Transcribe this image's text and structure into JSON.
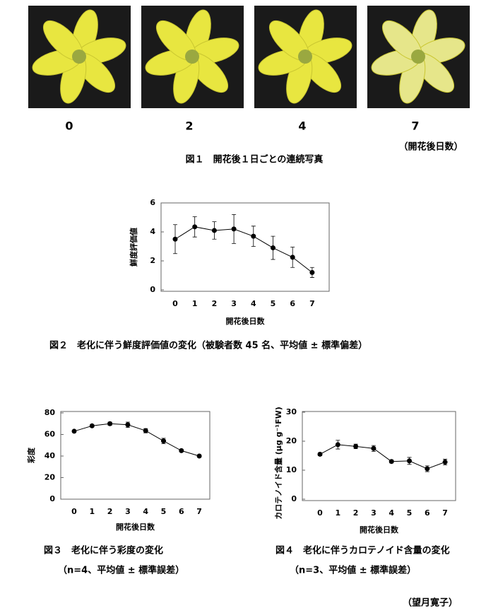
{
  "figure1": {
    "labels": [
      0,
      2,
      4,
      7
    ],
    "unit": "（開花後日数）",
    "caption": "図１　開花後１日ごとの連続写真"
  },
  "chart_data": [
    {
      "type": "line",
      "ylabel": "鮮度評価値",
      "xlabel": "開花後日数",
      "caption": "図２　老化に伴う鮮度評価値の変化（被験者数 45 名、平均値 ± 標準偏差）",
      "categories": [
        "0",
        "1",
        "2",
        "3",
        "4",
        "5",
        "6",
        "7"
      ],
      "values": [
        3.5,
        4.35,
        4.1,
        4.2,
        3.7,
        2.9,
        2.25,
        1.2
      ],
      "errors": [
        1.0,
        0.7,
        0.6,
        1.0,
        0.7,
        0.8,
        0.7,
        0.35
      ],
      "ylim": [
        0,
        6
      ],
      "yticks": [
        0,
        2,
        4,
        6
      ],
      "color": "#000000"
    },
    {
      "type": "line",
      "ylabel": "彩度",
      "xlabel": "開花後日数",
      "caption": "図３　老化に伴う彩度の変化",
      "subcaption": "（n=4、平均値 ± 標準誤差）",
      "categories": [
        "0",
        "1",
        "2",
        "3",
        "4",
        "5",
        "6",
        "7"
      ],
      "values": [
        63,
        68,
        70,
        69,
        63.5,
        54,
        45,
        40
      ],
      "errors": [
        1,
        1,
        1.5,
        2.5,
        2,
        2.5,
        1,
        1
      ],
      "ylim": [
        0,
        80
      ],
      "yticks": [
        0,
        20,
        40,
        60,
        80
      ],
      "color": "#000000"
    },
    {
      "type": "line",
      "ylabel": "カロテノイド含量 (μg g⁻¹FW)",
      "xlabel": "開花後日数",
      "caption": "図４　老化に伴うカロテノイド含量の変化",
      "subcaption": "（n=3、平均値 ± 標準誤差）",
      "categories": [
        "0",
        "1",
        "2",
        "3",
        "4",
        "5",
        "6",
        "7"
      ],
      "values": [
        15.5,
        18.8,
        18.2,
        17.5,
        13,
        13.2,
        10.5,
        12.8
      ],
      "errors": [
        0.5,
        1.5,
        0.8,
        1,
        0.5,
        1.2,
        1,
        1
      ],
      "ylim": [
        0,
        30
      ],
      "yticks": [
        0,
        10,
        20,
        30
      ],
      "color": "#000000"
    }
  ],
  "author": "（望月寛子）"
}
